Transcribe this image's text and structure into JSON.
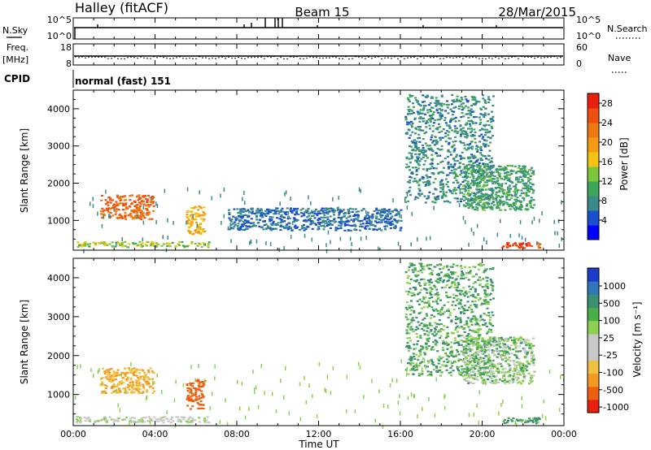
{
  "header": {
    "station": "Halley (fitACF)",
    "beam": "Beam 15",
    "date": "28/Mar/2015"
  },
  "params": {
    "nsky_label": "N.Sky",
    "nsky_ticks": [
      "10^5",
      "10^0"
    ],
    "nsearch_label": "N.Search",
    "nsearch_ticks": [
      "10^5",
      "10^0"
    ],
    "freq_label": "Freq.",
    "freq_unit": "[MHz]",
    "freq_ticks": [
      "18",
      "8"
    ],
    "nave_label": "Nave",
    "nave_ticks": [
      "60",
      "0"
    ],
    "cpid_label": "CPID",
    "cpid_value": "normal (fast) 151"
  },
  "axes": {
    "xlabel": "Time UT",
    "x_ticks": [
      "00:00",
      "04:00",
      "08:00",
      "12:00",
      "16:00",
      "20:00",
      "00:00"
    ],
    "ylabel": "Slant Range [km]",
    "y_ticks": [
      "1000",
      "2000",
      "3000",
      "4000"
    ]
  },
  "colorbars": {
    "power": {
      "label": "Power [dB]",
      "ticks": [
        "4",
        "8",
        "12",
        "16",
        "20",
        "24",
        "28"
      ],
      "colors": [
        "#0000ff",
        "#1a4fd0",
        "#3a8a8a",
        "#3ca55a",
        "#7cc43a",
        "#f2c414",
        "#f59a14",
        "#f07a12",
        "#ee5010",
        "#e8200c"
      ]
    },
    "velocity": {
      "label": "Velocity [m s⁻¹]",
      "ticks": [
        "1000",
        "500",
        "100",
        "25",
        "-25",
        "-100",
        "-500",
        "-1000"
      ],
      "colors": [
        "#1a3cc8",
        "#2e78b8",
        "#3a9070",
        "#4aae48",
        "#8cd050",
        "#c8c8c8",
        "#c8c8c8",
        "#f0c040",
        "#f59a20",
        "#ee6010",
        "#e82010"
      ]
    }
  },
  "chart_data": [
    {
      "type": "heatmap",
      "title": "Power [dB]",
      "x_range": [
        "00:00",
        "24:00"
      ],
      "ylim": [
        200,
        4500
      ],
      "xlabel": "Time UT",
      "ylabel": "Slant Range [km]",
      "zlim": [
        0,
        30
      ],
      "regions": [
        {
          "t0": 1.3,
          "t1": 3.9,
          "r0": 1050,
          "r1": 1700,
          "value": 24
        },
        {
          "t0": 5.5,
          "t1": 6.4,
          "r0": 650,
          "r1": 1400,
          "value": 18
        },
        {
          "t0": 0.1,
          "t1": 6.6,
          "r0": 300,
          "r1": 450,
          "value": 14
        },
        {
          "t0": 7.5,
          "t1": 16.0,
          "r0": 750,
          "r1": 1350,
          "value": 6
        },
        {
          "t0": 16.2,
          "t1": 20.5,
          "r0": 1500,
          "r1": 4400,
          "value": 8
        },
        {
          "t0": 19.0,
          "t1": 22.5,
          "r0": 1300,
          "r1": 2500,
          "value": 10
        },
        {
          "t0": 20.9,
          "t1": 22.8,
          "r0": 280,
          "r1": 420,
          "value": 26
        }
      ]
    },
    {
      "type": "heatmap",
      "title": "Velocity [m s⁻¹]",
      "x_range": [
        "00:00",
        "24:00"
      ],
      "ylim": [
        200,
        4500
      ],
      "xlabel": "Time UT",
      "ylabel": "Slant Range [km]",
      "zlim": [
        -1000,
        1000
      ],
      "regions": [
        {
          "t0": 1.3,
          "t1": 3.9,
          "r0": 1050,
          "r1": 1700,
          "value": -300
        },
        {
          "t0": 5.5,
          "t1": 6.4,
          "r0": 650,
          "r1": 1400,
          "value": -700
        },
        {
          "t0": 0.1,
          "t1": 6.6,
          "r0": 300,
          "r1": 450,
          "value": -60
        },
        {
          "t0": 16.2,
          "t1": 20.5,
          "r0": 1500,
          "r1": 4400,
          "value": 60
        },
        {
          "t0": 19.0,
          "t1": 22.5,
          "r0": 1300,
          "r1": 2500,
          "value": 0
        },
        {
          "t0": 20.9,
          "t1": 22.8,
          "r0": 280,
          "r1": 420,
          "value": 80
        }
      ]
    }
  ]
}
